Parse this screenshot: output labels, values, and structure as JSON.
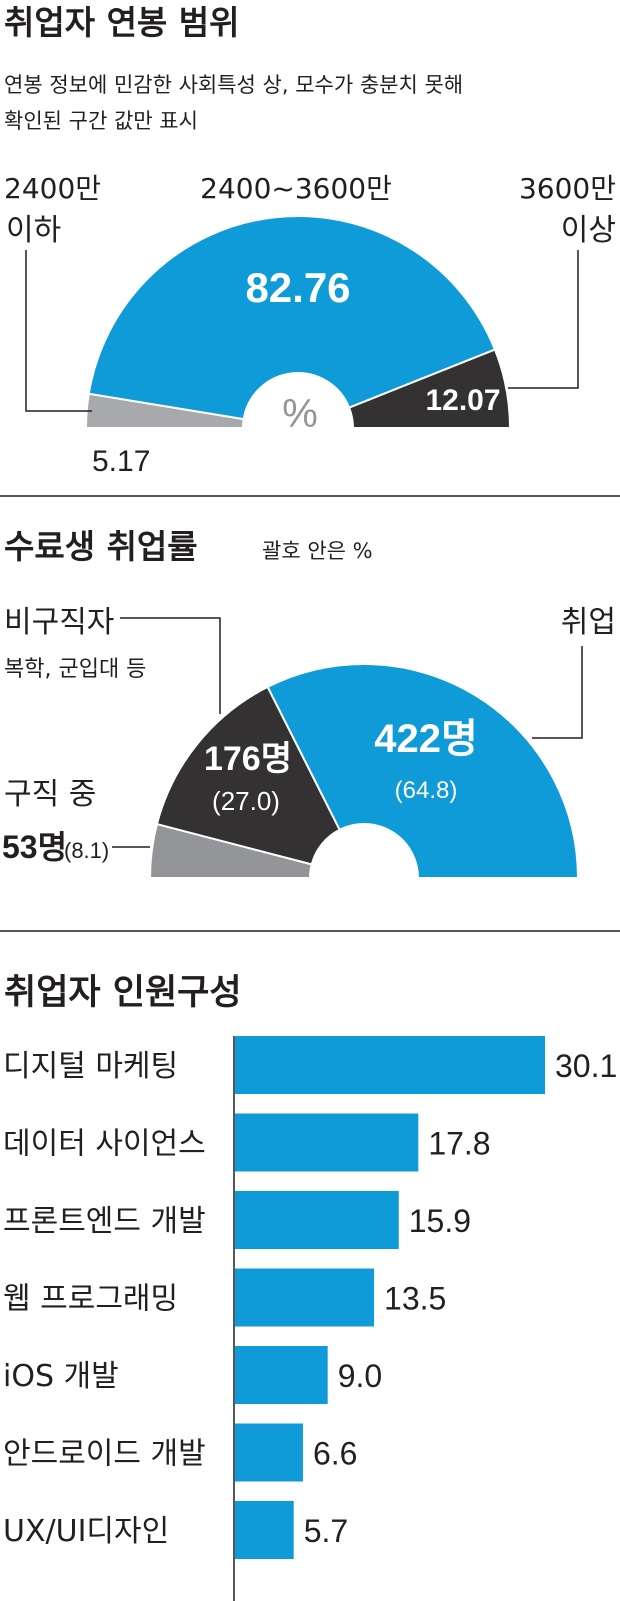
{
  "salary_section": {
    "title": "취업자 연봉 범위",
    "note_line1": "연봉 정보에 민감한 사회특성 상, 모수가 충분치 못해",
    "note_line2": "확인된 구간 값만 표시",
    "unit": "%",
    "colors": {
      "low": "#a7a9ac",
      "mid": "#0f9bd7",
      "high": "#333132"
    }
  },
  "employment_section": {
    "title": "수료생 취업률",
    "subtitle": "괄호 안은 %",
    "noncredit_desc": "복학, 군입대 등",
    "colors": {
      "seeking": "#949598",
      "noncredit": "#333132",
      "employed": "#0f9bd7"
    }
  },
  "composition_section": {
    "title": "취업자 인원구성",
    "bar_color": "#0f9bd7"
  },
  "chart_data": [
    {
      "type": "pie",
      "variant": "half-donut",
      "title": "취업자 연봉 범위",
      "slices": [
        {
          "label_line1": "2400만",
          "label_line2": "이하",
          "value": 5.17,
          "value_label": "5.17"
        },
        {
          "label_line1": "2400~3600만",
          "label_line2": "",
          "value": 82.76,
          "value_label": "82.76"
        },
        {
          "label_line1": "3600만",
          "label_line2": "이상",
          "value": 12.07,
          "value_label": "12.07"
        }
      ]
    },
    {
      "type": "pie",
      "variant": "half-donut",
      "title": "수료생 취업률",
      "slices": [
        {
          "label": "구직 중",
          "count_label": "53명",
          "value": 8.1,
          "value_label": "(8.1)"
        },
        {
          "label": "비구직자",
          "count_label": "176명",
          "value": 27.0,
          "value_label": "(27.0)"
        },
        {
          "label": "취업",
          "count_label": "422명",
          "value": 64.8,
          "value_label": "(64.8)"
        }
      ]
    },
    {
      "type": "bar",
      "orientation": "horizontal",
      "title": "취업자 인원구성",
      "categories": [
        "디지털 마케팅",
        "데이터 사이언스",
        "프론트엔드 개발",
        "웹 프로그래밍",
        "iOS 개발",
        "안드로이드 개발",
        "UX/UI디자인"
      ],
      "values": [
        30.1,
        17.8,
        15.9,
        13.5,
        9.0,
        6.6,
        5.7
      ],
      "value_labels": [
        "30.1",
        "17.8",
        "15.9",
        "13.5",
        "9.0",
        "6.6",
        "5.7"
      ]
    }
  ]
}
